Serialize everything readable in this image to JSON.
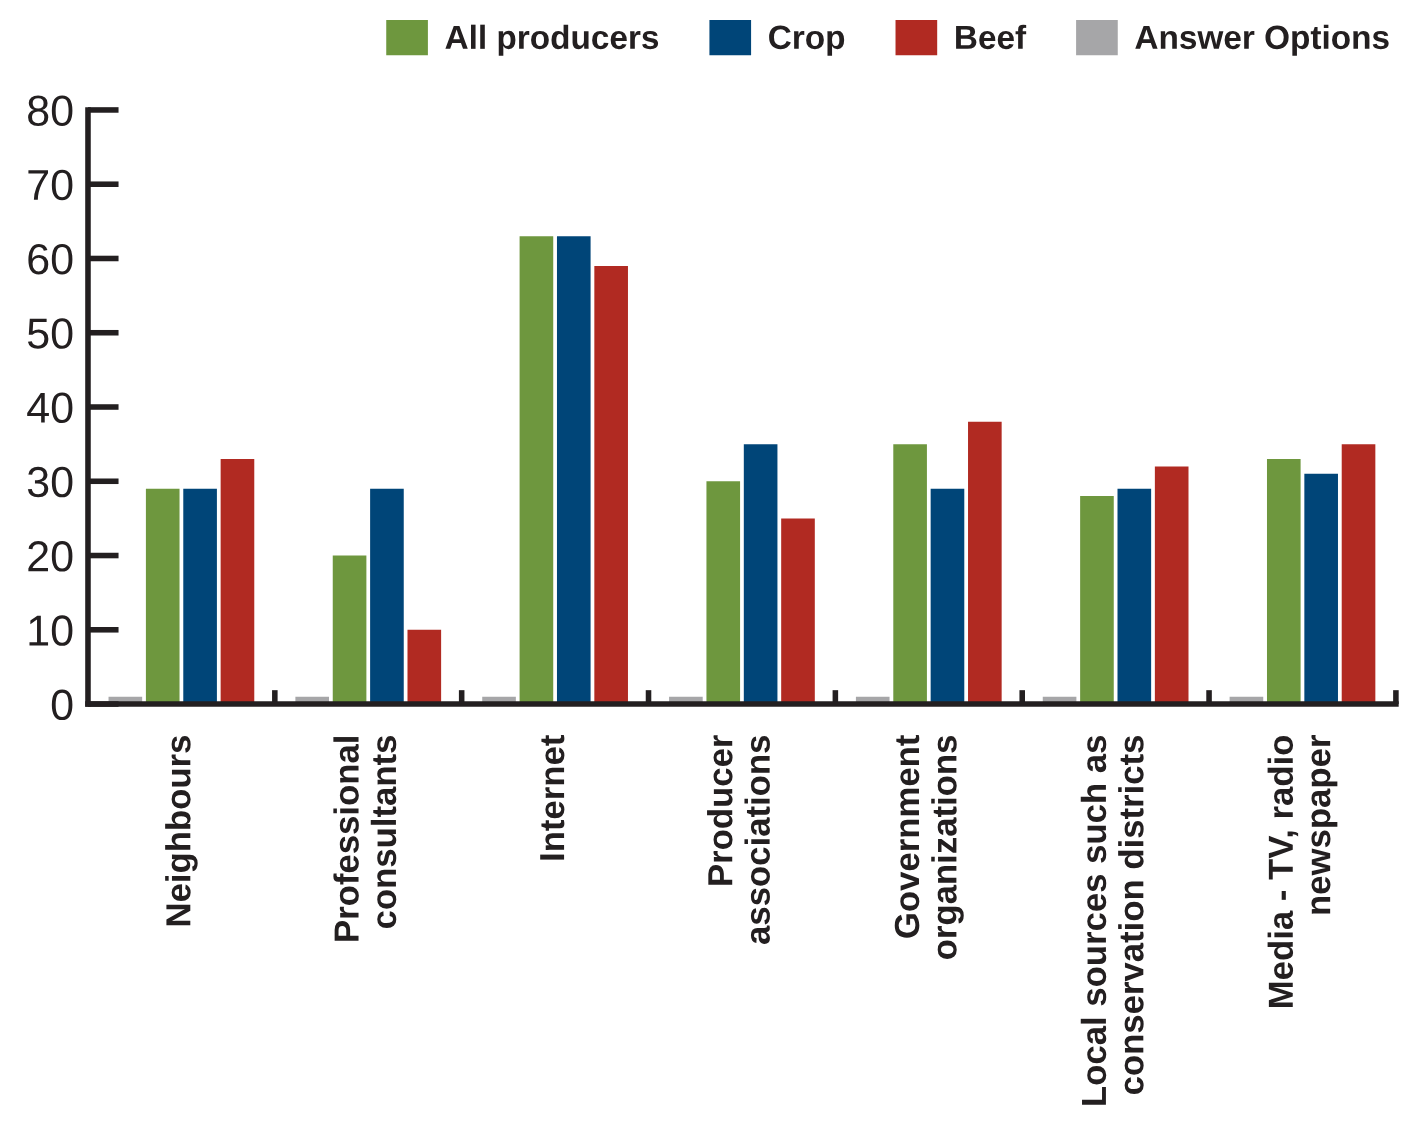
{
  "chart_data": {
    "type": "bar",
    "categories": [
      "Neighbours",
      "Professional\nconsultants",
      "Internet",
      "Producer\nassociations",
      "Government\norganizations",
      "Local sources such as\nconservation districts",
      "Media - TV, radio\nnewspaper"
    ],
    "series": [
      {
        "name": "Answer Options",
        "color": "#a6a6a8",
        "values": [
          1,
          1,
          1,
          1,
          1,
          1,
          1
        ]
      },
      {
        "name": "All producers",
        "color": "#6e973e",
        "values": [
          29,
          20,
          63,
          30,
          35,
          28,
          33
        ]
      },
      {
        "name": "Crop",
        "color": "#004578",
        "values": [
          29,
          29,
          63,
          35,
          29,
          29,
          31
        ]
      },
      {
        "name": "Beef",
        "color": "#b12a22",
        "values": [
          33,
          10,
          59,
          25,
          38,
          32,
          35
        ]
      }
    ],
    "ylim": [
      0,
      80
    ],
    "yticks": [
      0,
      10,
      20,
      30,
      40,
      50,
      60,
      70,
      80
    ],
    "legend": "top right"
  }
}
